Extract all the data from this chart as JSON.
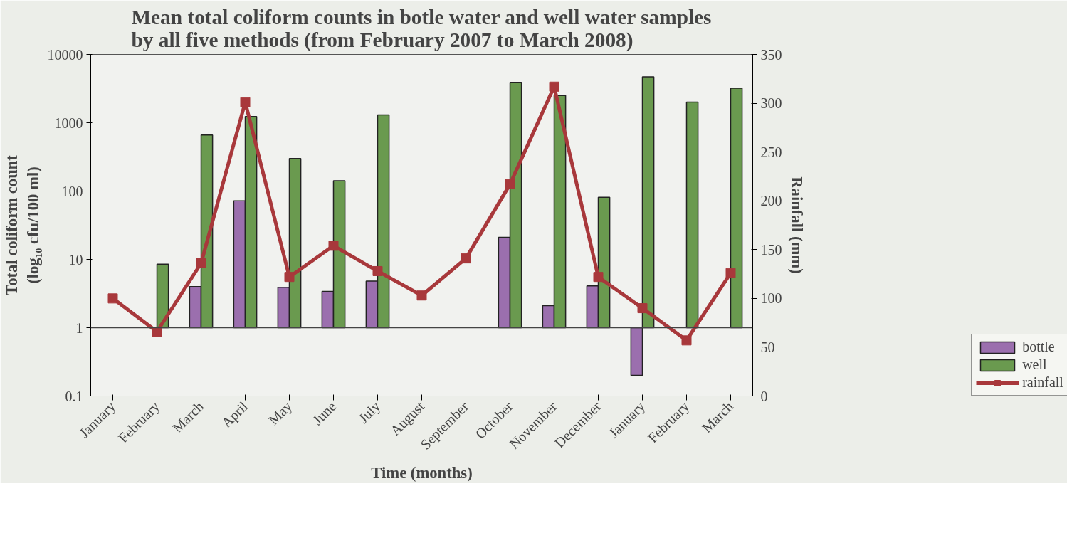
{
  "chart_data": {
    "type": "bar",
    "title": "Mean total coliform counts in botle water and well water samples\nby all five methods (from February 2007 to March 2008)",
    "xlabel": "Time (months)",
    "ylabel": "Total coliform count\n(log₁₀ cfu/100 ml)",
    "y2label": "Rainfall (mm)",
    "categories": [
      "January",
      "February",
      "March",
      "April",
      "May",
      "June",
      "July",
      "August",
      "September",
      "October",
      "November",
      "December",
      "January",
      "February",
      "March"
    ],
    "log": "y",
    "ylim": [
      0.1,
      10000
    ],
    "yticks": [
      0.1,
      1,
      10,
      100,
      1000,
      10000
    ],
    "y2lim": [
      0,
      350
    ],
    "y2ticks": [
      0,
      50,
      100,
      150,
      200,
      250,
      300,
      350
    ],
    "grid": false,
    "legend": "bottom right",
    "ref_lines": [
      {
        "axis": "y",
        "value": 1
      }
    ],
    "series": [
      {
        "name": "bottle",
        "color": "#9b6fae",
        "values": [
          null,
          null,
          3,
          71,
          2.9,
          2.4,
          3.8,
          null,
          null,
          20,
          1.1,
          3.1,
          -0.8,
          null,
          null
        ],
        "base": [
          null,
          null,
          1,
          1,
          1,
          1,
          1,
          null,
          null,
          1,
          1,
          1,
          1,
          null,
          null
        ]
      },
      {
        "name": "well",
        "color": "#6a9a4f",
        "values": [
          null,
          7.5,
          659,
          1229,
          299,
          141,
          1299,
          null,
          null,
          3899,
          2499,
          80,
          4699,
          1999,
          3199
        ],
        "base": [
          null,
          1,
          1,
          1,
          1,
          1,
          1,
          null,
          null,
          1,
          1,
          1,
          1,
          1,
          1
        ]
      },
      {
        "name": "rainfall",
        "type": "line",
        "axis": "y2",
        "color": "#a8383b",
        "marker": "square",
        "line_style": "solid",
        "values": [
          100,
          66,
          136,
          301,
          122,
          154,
          128,
          103,
          141,
          217,
          317,
          122,
          90,
          57,
          126
        ]
      }
    ]
  }
}
